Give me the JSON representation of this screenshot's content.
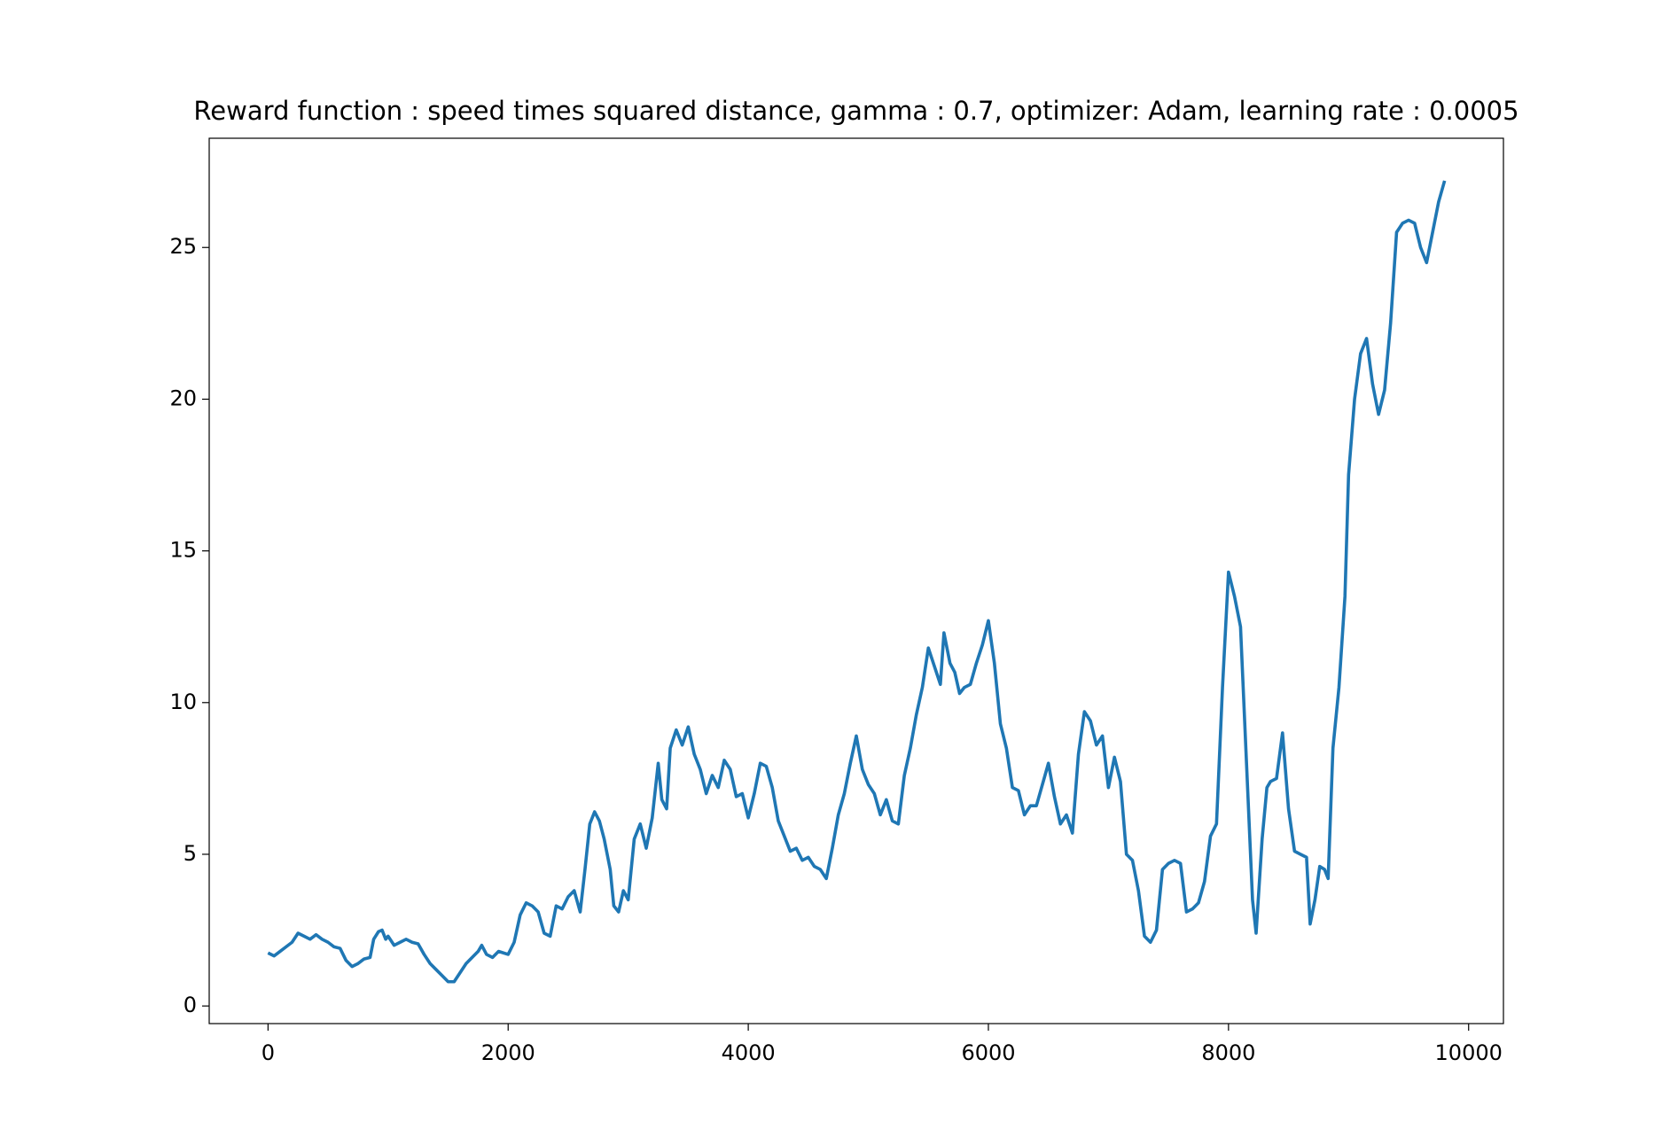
{
  "chart_data": {
    "type": "line",
    "title": "Reward function : speed times squared distance, gamma : 0.7, optimizer: Adam, learning rate : 0.0005",
    "color": "#1f77b4",
    "x": [
      0,
      50,
      100,
      200,
      250,
      300,
      350,
      400,
      450,
      500,
      550,
      600,
      650,
      700,
      750,
      800,
      850,
      880,
      920,
      950,
      980,
      1000,
      1050,
      1100,
      1150,
      1200,
      1250,
      1300,
      1350,
      1400,
      1450,
      1500,
      1550,
      1600,
      1650,
      1700,
      1750,
      1780,
      1820,
      1870,
      1920,
      2000,
      2050,
      2100,
      2150,
      2200,
      2250,
      2300,
      2350,
      2400,
      2450,
      2500,
      2550,
      2600,
      2640,
      2680,
      2720,
      2760,
      2800,
      2850,
      2880,
      2920,
      2960,
      3000,
      3050,
      3100,
      3150,
      3200,
      3250,
      3280,
      3320,
      3350,
      3400,
      3450,
      3500,
      3550,
      3600,
      3650,
      3700,
      3750,
      3800,
      3850,
      3900,
      3950,
      4000,
      4050,
      4100,
      4150,
      4200,
      4250,
      4300,
      4350,
      4400,
      4450,
      4500,
      4550,
      4600,
      4650,
      4700,
      4750,
      4800,
      4850,
      4900,
      4950,
      5000,
      5050,
      5100,
      5150,
      5200,
      5250,
      5300,
      5350,
      5400,
      5450,
      5500,
      5550,
      5600,
      5630,
      5680,
      5720,
      5760,
      5800,
      5850,
      5900,
      5950,
      6000,
      6050,
      6100,
      6150,
      6200,
      6250,
      6300,
      6350,
      6400,
      6450,
      6500,
      6550,
      6600,
      6650,
      6700,
      6750,
      6800,
      6850,
      6900,
      6950,
      7000,
      7050,
      7100,
      7150,
      7200,
      7250,
      7300,
      7350,
      7400,
      7450,
      7500,
      7550,
      7600,
      7650,
      7700,
      7750,
      7800,
      7850,
      7900,
      7950,
      8000,
      8050,
      8100,
      8150,
      8200,
      8230,
      8280,
      8320,
      8350,
      8400,
      8450,
      8500,
      8550,
      8600,
      8650,
      8680,
      8720,
      8760,
      8800,
      8830,
      8870,
      8920,
      8970,
      9000,
      9050,
      9100,
      9150,
      9200,
      9250,
      9300,
      9350,
      9400,
      9450,
      9500,
      9550,
      9600,
      9650,
      9700,
      9750,
      9800
    ],
    "values": [
      1.75,
      1.65,
      1.8,
      2.1,
      2.4,
      2.3,
      2.2,
      2.35,
      2.2,
      2.1,
      1.95,
      1.9,
      1.5,
      1.3,
      1.4,
      1.55,
      1.6,
      2.2,
      2.45,
      2.5,
      2.2,
      2.3,
      2.0,
      2.1,
      2.2,
      2.1,
      2.05,
      1.7,
      1.4,
      1.2,
      1.0,
      0.8,
      0.8,
      1.1,
      1.4,
      1.6,
      1.8,
      2.0,
      1.7,
      1.6,
      1.8,
      1.7,
      2.1,
      3.0,
      3.4,
      3.3,
      3.1,
      2.4,
      2.3,
      3.3,
      3.2,
      3.6,
      3.8,
      3.1,
      4.5,
      6.0,
      6.4,
      6.1,
      5.5,
      4.5,
      3.3,
      3.1,
      3.8,
      3.5,
      5.5,
      6.0,
      5.2,
      6.2,
      8.0,
      6.8,
      6.5,
      8.5,
      9.1,
      8.6,
      9.2,
      8.3,
      7.8,
      7.0,
      7.6,
      7.2,
      8.1,
      7.8,
      6.9,
      7.0,
      6.2,
      7.0,
      8.0,
      7.9,
      7.2,
      6.1,
      5.6,
      5.1,
      5.2,
      4.8,
      4.9,
      4.6,
      4.5,
      4.2,
      5.2,
      6.3,
      7.0,
      8.0,
      8.9,
      7.8,
      7.3,
      7.0,
      6.3,
      6.8,
      6.1,
      6.0,
      7.6,
      8.5,
      9.6,
      10.5,
      11.8,
      11.2,
      10.6,
      12.3,
      11.3,
      11.0,
      10.3,
      10.5,
      10.6,
      11.3,
      11.9,
      12.7,
      11.3,
      9.3,
      8.5,
      7.2,
      7.1,
      6.3,
      6.6,
      6.6,
      7.3,
      8.0,
      6.9,
      6.0,
      6.3,
      5.7,
      8.3,
      9.7,
      9.4,
      8.6,
      8.9,
      7.2,
      8.2,
      7.4,
      5.0,
      4.8,
      3.8,
      2.3,
      2.1,
      2.5,
      4.5,
      4.7,
      4.8,
      4.7,
      3.1,
      3.2,
      3.4,
      4.1,
      5.6,
      6.0,
      10.5,
      14.3,
      13.5,
      12.5,
      8.0,
      3.5,
      2.4,
      5.5,
      7.2,
      7.4,
      7.5,
      9.0,
      6.5,
      5.1,
      5.0,
      4.9,
      2.7,
      3.5,
      4.6,
      4.5,
      4.2,
      8.5,
      10.5,
      13.5,
      17.5,
      20.0,
      21.5,
      22.0,
      20.5,
      19.5,
      20.3,
      22.5,
      25.5,
      25.8,
      25.9,
      25.8,
      25.0,
      24.5,
      25.5,
      26.5,
      27.2
    ],
    "xlim": [
      -490,
      10290
    ],
    "ylim": [
      -0.58,
      28.6
    ],
    "xticks": [
      0,
      2000,
      4000,
      6000,
      8000,
      10000
    ],
    "yticks": [
      0,
      5,
      10,
      15,
      20,
      25
    ]
  }
}
